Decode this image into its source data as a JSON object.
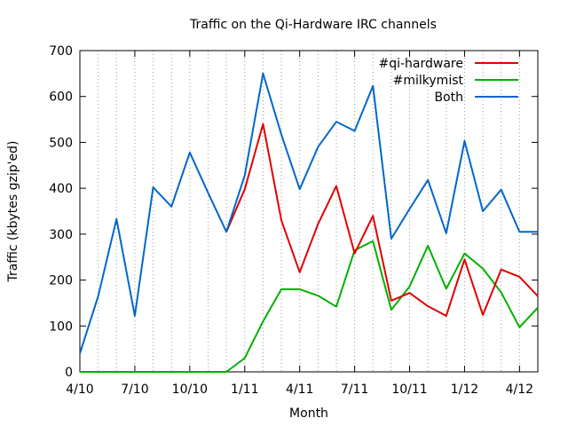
{
  "chart_data": {
    "type": "line",
    "title": "Traffic on the Qi-Hardware IRC channels",
    "xlabel": "Month",
    "ylabel": "Traffic (kbytes gzip'ed)",
    "ylim": [
      0,
      700
    ],
    "yticks": [
      0,
      100,
      200,
      300,
      400,
      500,
      600,
      700
    ],
    "x_months": [
      "4/10",
      "5/10",
      "6/10",
      "7/10",
      "8/10",
      "9/10",
      "10/10",
      "11/10",
      "12/10",
      "1/11",
      "2/11",
      "3/11",
      "4/11",
      "5/11",
      "6/11",
      "7/11",
      "8/11",
      "9/11",
      "10/11",
      "11/11",
      "12/11",
      "1/12",
      "2/12",
      "3/12",
      "4/12",
      "5/12"
    ],
    "xtick_labels": [
      "4/10",
      "7/10",
      "10/10",
      "1/11",
      "4/11",
      "7/11",
      "10/11",
      "1/12",
      "4/12"
    ],
    "grid": "vertical dotted per month",
    "legend_position": "top-right",
    "series": [
      {
        "name": "#qi-hardware",
        "color": "#e00000",
        "values": [
          null,
          null,
          null,
          null,
          null,
          null,
          null,
          null,
          305,
          398,
          540,
          330,
          217,
          322,
          405,
          258,
          340,
          155,
          172,
          143,
          122,
          245,
          124,
          223,
          207,
          165
        ]
      },
      {
        "name": "#milkymist",
        "color": "#00b000",
        "values": [
          0,
          0,
          0,
          0,
          0,
          0,
          0,
          0,
          0,
          30,
          110,
          180,
          180,
          166,
          142,
          265,
          285,
          135,
          186,
          275,
          181,
          258,
          225,
          173,
          97,
          140
        ]
      },
      {
        "name": "Both",
        "color": "#0066cc",
        "values": [
          40,
          165,
          333,
          122,
          402,
          360,
          478,
          390,
          305,
          428,
          650,
          517,
          398,
          490,
          545,
          525,
          623,
          290,
          355,
          418,
          302,
          503,
          350,
          397,
          305,
          305
        ]
      }
    ]
  }
}
